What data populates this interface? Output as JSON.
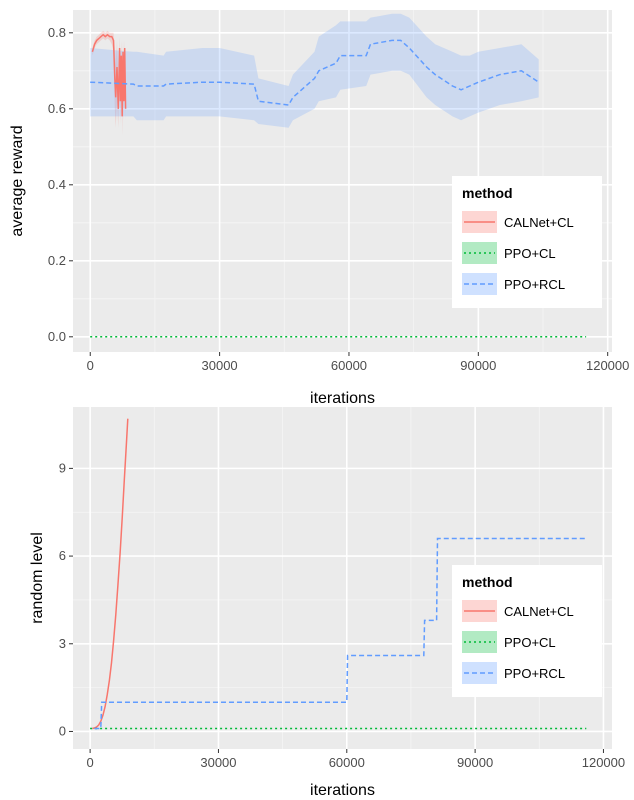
{
  "chart_data": [
    {
      "type": "line",
      "xlabel": "iterations",
      "ylabel": "average reward",
      "xlim": [
        -4000,
        121000
      ],
      "ylim": [
        -0.04,
        0.86
      ],
      "x_ticks": [
        0,
        30000,
        60000,
        90000,
        120000
      ],
      "x_tick_labels": [
        "0",
        "30000",
        "60000",
        "90000",
        "120000"
      ],
      "y_ticks": [
        0,
        0.2,
        0.4,
        0.6,
        0.8
      ],
      "y_tick_labels": [
        "0.0",
        "0.2",
        "0.4",
        "0.6",
        "0.8"
      ],
      "grid": true,
      "legend": {
        "title": "method",
        "position": "right",
        "entries": [
          "CALNet+CL",
          "PPO+CL",
          "PPO+RCL"
        ]
      },
      "series": [
        {
          "name": "CALNet+CL",
          "color": "#f8766d",
          "style": "solid",
          "x": [
            500,
            1000,
            1500,
            2000,
            2500,
            3000,
            3500,
            4000,
            4500,
            5000,
            5400,
            5700,
            5900,
            6200,
            6500,
            6800,
            7000,
            7200,
            7400,
            7600,
            7800,
            8000,
            8200
          ],
          "y": [
            0.75,
            0.77,
            0.78,
            0.785,
            0.79,
            0.795,
            0.79,
            0.795,
            0.79,
            0.79,
            0.78,
            0.68,
            0.63,
            0.71,
            0.6,
            0.76,
            0.62,
            0.74,
            0.58,
            0.75,
            0.62,
            0.76,
            0.6
          ],
          "band_lower": [
            0.74,
            0.76,
            0.77,
            0.775,
            0.78,
            0.785,
            0.78,
            0.785,
            0.78,
            0.77,
            0.75,
            0.6,
            0.55,
            0.62,
            0.55,
            0.7,
            0.56,
            0.66,
            0.53,
            0.68,
            0.57,
            0.7,
            0.57
          ],
          "band_upper": [
            0.76,
            0.78,
            0.79,
            0.795,
            0.8,
            0.805,
            0.8,
            0.805,
            0.8,
            0.8,
            0.8,
            0.76,
            0.72,
            0.78,
            0.68,
            0.79,
            0.7,
            0.78,
            0.65,
            0.78,
            0.7,
            0.78,
            0.66
          ]
        },
        {
          "name": "PPO+CL",
          "color": "#00ba38",
          "style": "dotted",
          "x": [
            0,
            115000
          ],
          "y": [
            0,
            0
          ]
        },
        {
          "name": "PPO+RCL",
          "color": "#619cff",
          "style": "dashed",
          "x": [
            0,
            10000,
            10800,
            17000,
            17600,
            26000,
            30000,
            38000,
            39000,
            46000,
            47000,
            52000,
            53000,
            57000,
            58000,
            64000,
            65000,
            70000,
            72000,
            74000,
            78000,
            80000,
            84000,
            86000,
            88000,
            90000,
            95000,
            100000,
            104000
          ],
          "y": [
            0.67,
            0.665,
            0.66,
            0.66,
            0.665,
            0.67,
            0.67,
            0.665,
            0.62,
            0.61,
            0.63,
            0.68,
            0.7,
            0.72,
            0.74,
            0.74,
            0.77,
            0.78,
            0.78,
            0.76,
            0.71,
            0.69,
            0.66,
            0.65,
            0.66,
            0.67,
            0.69,
            0.7,
            0.67
          ],
          "band_lower": [
            0.58,
            0.58,
            0.57,
            0.57,
            0.58,
            0.58,
            0.58,
            0.57,
            0.56,
            0.55,
            0.57,
            0.6,
            0.62,
            0.63,
            0.65,
            0.66,
            0.69,
            0.7,
            0.7,
            0.69,
            0.63,
            0.61,
            0.58,
            0.57,
            0.58,
            0.59,
            0.61,
            0.62,
            0.63
          ],
          "band_upper": [
            0.76,
            0.75,
            0.75,
            0.74,
            0.75,
            0.76,
            0.76,
            0.74,
            0.68,
            0.66,
            0.69,
            0.75,
            0.79,
            0.82,
            0.83,
            0.83,
            0.84,
            0.85,
            0.85,
            0.84,
            0.79,
            0.77,
            0.75,
            0.74,
            0.74,
            0.75,
            0.76,
            0.77,
            0.73
          ]
        }
      ]
    },
    {
      "type": "line",
      "xlabel": "iterations",
      "ylabel": "random level",
      "xlim": [
        -4000,
        122000
      ],
      "ylim": [
        -0.6,
        11.1
      ],
      "x_ticks": [
        0,
        30000,
        60000,
        90000,
        120000
      ],
      "x_tick_labels": [
        "0",
        "30000",
        "60000",
        "90000",
        "120000"
      ],
      "y_ticks": [
        0,
        3,
        6,
        9
      ],
      "y_tick_labels": [
        "0",
        "3",
        "6",
        "9"
      ],
      "grid": true,
      "legend": {
        "title": "method",
        "position": "right",
        "entries": [
          "CALNet+CL",
          "PPO+CL",
          "PPO+RCL"
        ]
      },
      "series": [
        {
          "name": "CALNet+CL",
          "color": "#f8766d",
          "style": "solid",
          "x": [
            500,
            1000,
            1500,
            2000,
            2500,
            3000,
            3500,
            4000,
            4500,
            5000,
            5500,
            6000,
            6500,
            7000,
            7500,
            8000,
            8500,
            8800
          ],
          "y": [
            0.1,
            0.12,
            0.15,
            0.22,
            0.35,
            0.55,
            0.85,
            1.25,
            1.75,
            2.35,
            3.1,
            4.0,
            5.0,
            6.1,
            7.3,
            8.6,
            9.9,
            10.7
          ]
        },
        {
          "name": "PPO+CL",
          "color": "#00ba38",
          "style": "dotted",
          "x": [
            0,
            116000
          ],
          "y": [
            0.1,
            0.1
          ]
        },
        {
          "name": "PPO+RCL",
          "color": "#619cff",
          "style": "dashed",
          "x": [
            1000,
            2500,
            2700,
            60000,
            60200,
            78000,
            78200,
            81000,
            81200,
            116000
          ],
          "y": [
            0.1,
            0.1,
            1.0,
            1.0,
            2.6,
            2.6,
            3.8,
            3.8,
            6.6,
            6.6
          ]
        }
      ]
    }
  ]
}
